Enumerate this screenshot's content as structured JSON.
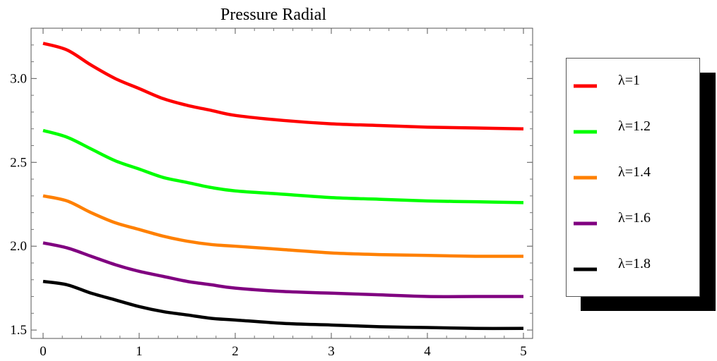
{
  "chart_data": {
    "type": "line",
    "title": "Pressure Radial",
    "xlabel": "",
    "ylabel": "",
    "xlim": [
      0,
      5
    ],
    "ylim": [
      1.45,
      3.3
    ],
    "x_ticks": [
      "0",
      "1",
      "2",
      "3",
      "4",
      "5"
    ],
    "y_ticks": [
      "1.5",
      "2.0",
      "2.5",
      "3.0"
    ],
    "grid": false,
    "legend_position": "right",
    "x": [
      0,
      0.25,
      0.5,
      0.75,
      1,
      1.25,
      1.5,
      1.75,
      2,
      2.5,
      3,
      3.5,
      4,
      4.5,
      5
    ],
    "series": [
      {
        "name": "λ=1",
        "color": "#ff0000",
        "values": [
          3.21,
          3.17,
          3.08,
          3.0,
          2.94,
          2.88,
          2.84,
          2.81,
          2.78,
          2.75,
          2.73,
          2.72,
          2.71,
          2.705,
          2.7
        ]
      },
      {
        "name": "λ=1.2",
        "color": "#00ff00",
        "values": [
          2.69,
          2.65,
          2.58,
          2.51,
          2.46,
          2.41,
          2.38,
          2.35,
          2.33,
          2.31,
          2.29,
          2.28,
          2.27,
          2.265,
          2.26
        ]
      },
      {
        "name": "λ=1.4",
        "color": "#ff8000",
        "values": [
          2.3,
          2.27,
          2.2,
          2.14,
          2.1,
          2.06,
          2.03,
          2.01,
          2.0,
          1.98,
          1.96,
          1.95,
          1.945,
          1.94,
          1.94
        ]
      },
      {
        "name": "λ=1.6",
        "color": "#800080",
        "values": [
          2.02,
          1.99,
          1.94,
          1.89,
          1.85,
          1.82,
          1.79,
          1.77,
          1.75,
          1.73,
          1.72,
          1.71,
          1.7,
          1.7,
          1.7
        ]
      },
      {
        "name": "λ=1.8",
        "color": "#000000",
        "values": [
          1.79,
          1.77,
          1.72,
          1.68,
          1.64,
          1.61,
          1.59,
          1.57,
          1.56,
          1.54,
          1.53,
          1.52,
          1.515,
          1.51,
          1.51
        ]
      }
    ]
  }
}
